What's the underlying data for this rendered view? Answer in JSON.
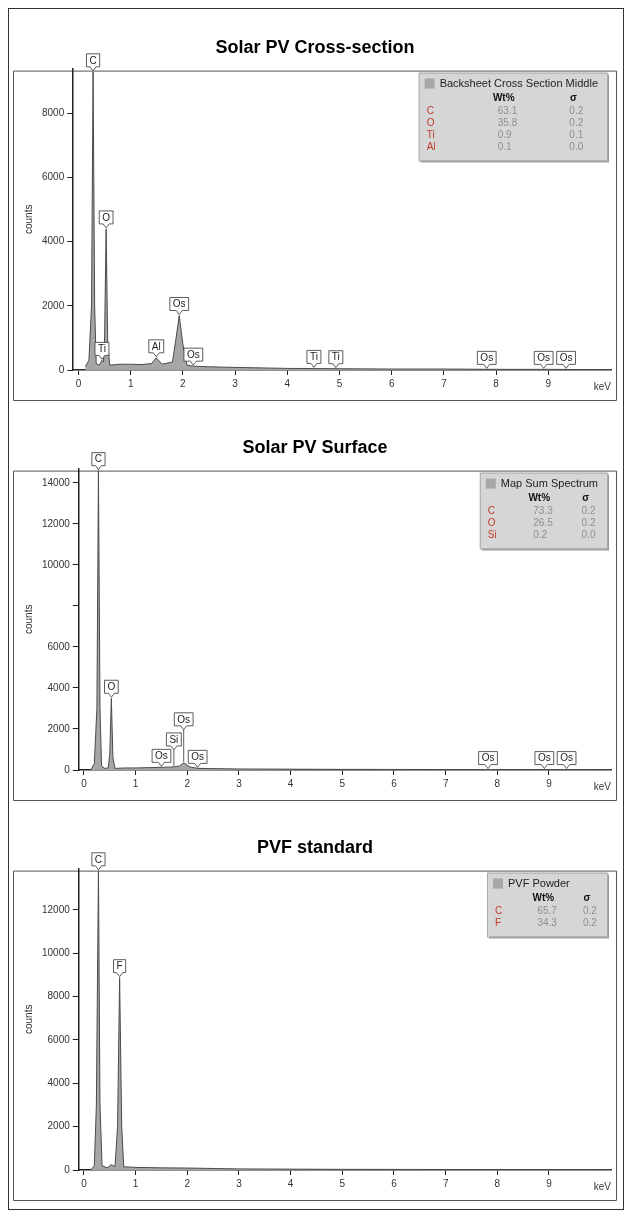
{
  "chart_data": [
    {
      "type": "area",
      "title": "Solar PV Cross-section",
      "xlabel": "keV",
      "ylabel": "counts",
      "xlim": [
        -0.1,
        10.2
      ],
      "xticks": [
        0,
        1,
        2,
        3,
        4,
        5,
        6,
        7,
        8,
        9
      ],
      "ylim": [
        0,
        9400
      ],
      "yticks": [
        0,
        2000,
        4000,
        6000,
        8000
      ],
      "grid": false,
      "legend": "top right",
      "marker": "none",
      "x": [
        0.13,
        0.2,
        0.25,
        0.28,
        0.31,
        0.34,
        0.4,
        0.45,
        0.48,
        0.5,
        0.53,
        0.56,
        0.6,
        0.8,
        1.0,
        1.2,
        1.4,
        1.49,
        1.6,
        1.8,
        1.87,
        1.93,
        2.0,
        2.08,
        2.2,
        2.5,
        3,
        4,
        5,
        6,
        7,
        8,
        9,
        10,
        10.2
      ],
      "series": [
        {
          "name": "Backsheet Cross Section Middle",
          "color": "#a6a6a6",
          "values": [
            100,
            300,
            2000,
            9300,
            2000,
            200,
            150,
            300,
            250,
            1000,
            4400,
            800,
            150,
            180,
            180,
            170,
            200,
            380,
            180,
            250,
            1000,
            1700,
            800,
            150,
            120,
            100,
            80,
            50,
            40,
            30,
            30,
            20,
            20,
            10,
            10
          ]
        }
      ],
      "annotations": [
        "Wt%",
        "σ",
        "C",
        "63.1",
        "0.2",
        "O",
        "35.8",
        "0.2",
        "Ti",
        "0.9",
        "0.1",
        "Al",
        "0.1",
        "0.0",
        {
          "text": "C",
          "x": 0.28,
          "y": 9300
        },
        {
          "text": "O",
          "x": 0.53,
          "y": 4400
        },
        {
          "text": "Ti",
          "x": 0.45,
          "y": 300
        },
        {
          "text": "Al",
          "x": 1.49,
          "y": 380
        },
        {
          "text": "Os",
          "x": 1.93,
          "y": 1700
        },
        {
          "text": "Os",
          "x": 2.2,
          "y": 120
        },
        {
          "text": "Ti",
          "x": 4.51,
          "y": 50
        },
        {
          "text": "Ti",
          "x": 4.93,
          "y": 40
        },
        {
          "text": "Os",
          "x": 7.82,
          "y": 20
        },
        {
          "text": "Os",
          "x": 8.91,
          "y": 20
        },
        {
          "text": "Os",
          "x": 9.34,
          "y": 20
        }
      ]
    },
    {
      "type": "area",
      "title": "Solar PV Surface",
      "xlabel": "keV",
      "ylabel": "counts",
      "xlim": [
        -0.1,
        10.2
      ],
      "xticks": [
        0,
        1,
        2,
        3,
        4,
        5,
        6,
        7,
        8,
        9
      ],
      "ylim": [
        0,
        14700
      ],
      "yticks": [
        0,
        2000,
        4000,
        6000,
        {
          "value": 8000,
          "label": null
        },
        10000,
        12000,
        14000
      ],
      "grid": false,
      "legend": "top right",
      "marker": "none",
      "x": [
        0.13,
        0.2,
        0.25,
        0.28,
        0.31,
        0.34,
        0.4,
        0.47,
        0.5,
        0.53,
        0.56,
        0.6,
        0.8,
        1.0,
        1.5,
        1.74,
        1.85,
        1.93,
        2.05,
        2.2,
        3,
        5,
        8,
        10.2
      ],
      "series": [
        {
          "name": "Map Sum Spectrum",
          "color": "#a6a6a6",
          "values": [
            0,
            300,
            3000,
            14600,
            3000,
            200,
            80,
            100,
            800,
            3500,
            600,
            80,
            100,
            100,
            130,
            150,
            200,
            350,
            150,
            80,
            50,
            30,
            20,
            10
          ]
        }
      ],
      "annotations": [
        "Wt%",
        "σ",
        "C",
        "73.3",
        "0.2",
        "O",
        "26.5",
        "0.2",
        "Si",
        "0.2",
        "0.0",
        {
          "text": "C",
          "x": 0.28,
          "y": 14600
        },
        {
          "text": "O",
          "x": 0.53,
          "y": 3500
        },
        {
          "text": "Os",
          "x": 1.5,
          "y": 130
        },
        {
          "text": "Si",
          "x": 1.74,
          "y": 150
        },
        {
          "text": "Os",
          "x": 1.93,
          "y": 350
        },
        {
          "text": "Os",
          "x": 2.2,
          "y": 80
        },
        {
          "text": "Os",
          "x": 7.82,
          "y": 20
        },
        {
          "text": "Os",
          "x": 8.91,
          "y": 20
        },
        {
          "text": "Os",
          "x": 9.34,
          "y": 20
        }
      ]
    },
    {
      "type": "area",
      "title": "PVF standard",
      "xlabel": "keV",
      "ylabel": "counts",
      "xlim": [
        -0.1,
        10.2
      ],
      "xticks": [
        0,
        1,
        2,
        3,
        4,
        5,
        6,
        7,
        8,
        9
      ],
      "ylim": [
        0,
        13900
      ],
      "yticks": [
        0,
        2000,
        4000,
        6000,
        8000,
        10000,
        12000
      ],
      "grid": false,
      "legend": "top right",
      "marker": "none",
      "x": [
        0.13,
        0.2,
        0.24,
        0.28,
        0.31,
        0.35,
        0.45,
        0.53,
        0.6,
        0.65,
        0.69,
        0.73,
        0.77,
        1.0,
        1.5,
        2,
        3,
        5,
        8,
        10.2
      ],
      "series": [
        {
          "name": "PVF Powder",
          "color": "#a6a6a6",
          "values": [
            0,
            200,
            3000,
            13800,
            3000,
            200,
            100,
            250,
            150,
            2000,
            8870,
            2000,
            150,
            120,
            100,
            90,
            50,
            30,
            20,
            10
          ]
        }
      ],
      "annotations": [
        "Wt%",
        "σ",
        "C",
        "65.7",
        "0.2",
        "F",
        "34.3",
        "0.2",
        {
          "text": "C",
          "x": 0.28,
          "y": 13800
        },
        {
          "text": "F",
          "x": 0.69,
          "y": 8870
        }
      ]
    }
  ]
}
